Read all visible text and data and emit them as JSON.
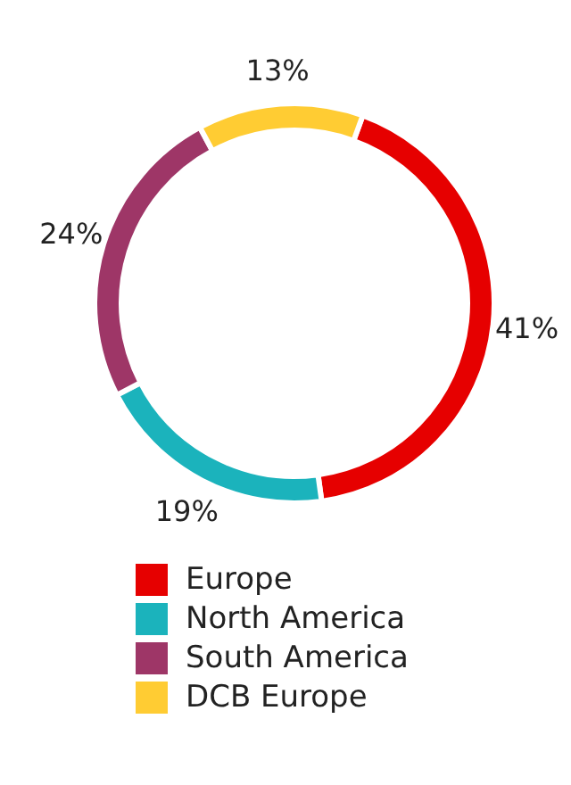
{
  "chart_data": {
    "type": "donut",
    "categories": [
      "Europe",
      "North America",
      "South America",
      "DCB Europe"
    ],
    "values": [
      41,
      19,
      24,
      13
    ],
    "colors": [
      "#e60000",
      "#1bb3bc",
      "#9e3667",
      "#ffcc33"
    ],
    "value_labels": [
      "41%",
      "19%",
      "24%",
      "13%"
    ],
    "legend": "bottom"
  }
}
